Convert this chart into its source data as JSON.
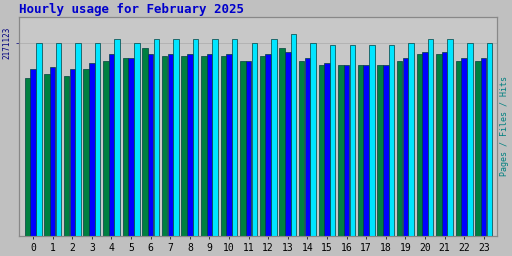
{
  "title": "Hourly usage for February 2025",
  "title_color": "#0000cc",
  "title_fontsize": 9,
  "background_color": "#c0c0c0",
  "plot_bg_color": "#c8c8c8",
  "ylabel_right": "Pages / Files / Hits",
  "ylabel_right_color": "#008080",
  "hours": [
    0,
    1,
    2,
    3,
    4,
    5,
    6,
    7,
    8,
    9,
    10,
    11,
    12,
    13,
    14,
    15,
    16,
    17,
    18,
    19,
    20,
    21,
    22,
    23
  ],
  "pages": [
    72,
    74,
    73,
    76,
    80,
    81,
    86,
    82,
    82,
    82,
    82,
    80,
    82,
    86,
    80,
    78,
    78,
    78,
    78,
    80,
    83,
    83,
    80,
    80
  ],
  "files": [
    76,
    77,
    76,
    79,
    83,
    81,
    83,
    83,
    83,
    83,
    83,
    80,
    83,
    84,
    81,
    79,
    78,
    78,
    78,
    81,
    84,
    84,
    81,
    81
  ],
  "hits": [
    88,
    88,
    88,
    88,
    90,
    88,
    90,
    90,
    90,
    90,
    90,
    88,
    90,
    92,
    88,
    87,
    87,
    87,
    87,
    88,
    90,
    90,
    88,
    88
  ],
  "ytick_label": "2171123",
  "ytick_color": "#000080",
  "pages_color": "#008040",
  "files_color": "#0000ff",
  "hits_color": "#00e5ff",
  "bar_edge_color": "#004040",
  "ylim": [
    0,
    100
  ],
  "grid_color": "#aaaaaa"
}
